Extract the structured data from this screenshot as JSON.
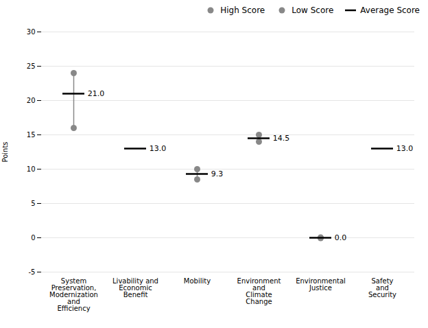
{
  "chart_data": {
    "type": "range_dot",
    "categories": [
      "System\nPreservation,\nModernization\nand\nEfficiency",
      "Livability and\nEconomic\nBenefit",
      "Mobility",
      "Environment\nand\nClimate\nChange",
      "Environmental\nJustice",
      "Safety\nand\nSecurity"
    ],
    "series": [
      {
        "name": "High Score",
        "color": "#888888",
        "marker": "o",
        "values": [
          24,
          null,
          10,
          15,
          0.05,
          null
        ]
      },
      {
        "name": "Low Score",
        "color": "#888888",
        "marker": "o",
        "values": [
          16,
          null,
          8.5,
          14,
          -0.05,
          null
        ]
      },
      {
        "name": "Average Score",
        "color": "#000000",
        "marker": "dash",
        "values": [
          21.0,
          13.0,
          9.3,
          14.5,
          0.0,
          13.0
        ],
        "value_labels": [
          "21.0",
          "13.0",
          "9.3",
          "14.5",
          "0.0",
          "13.0"
        ]
      }
    ],
    "ylabel": "Points",
    "ylim": [
      -5,
      30
    ],
    "yticks": [
      -5,
      0,
      5,
      10,
      15,
      20,
      25,
      30
    ],
    "grid": true,
    "legend": "upper right",
    "data_labels": true
  }
}
